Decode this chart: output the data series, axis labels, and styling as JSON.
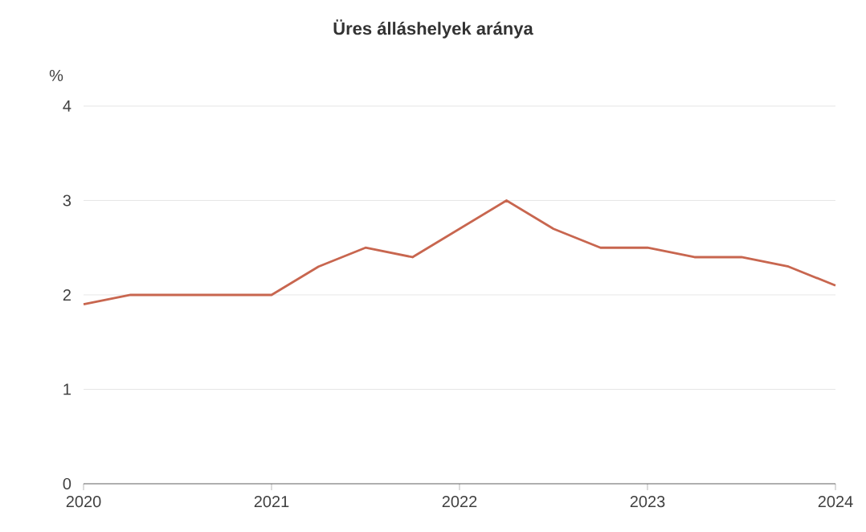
{
  "chart_data": {
    "type": "line",
    "title": "Üres álláshelyek aránya",
    "ylabel": "%",
    "x": [
      2020,
      2020.25,
      2020.5,
      2020.75,
      2021,
      2021.25,
      2021.5,
      2021.75,
      2022,
      2022.25,
      2022.5,
      2022.75,
      2023,
      2023.25,
      2023.5,
      2023.75,
      2024
    ],
    "series": [
      {
        "color": "#c8664f",
        "values": [
          1.9,
          2.0,
          2.0,
          2.0,
          2.0,
          2.3,
          2.5,
          2.4,
          2.7,
          3.0,
          2.7,
          2.5,
          2.5,
          2.4,
          2.4,
          2.3,
          2.1
        ]
      }
    ],
    "xlim": [
      2020,
      2024
    ],
    "xticks": [
      2020,
      2021,
      2022,
      2023,
      2024
    ],
    "ylim": [
      0,
      4
    ],
    "yticks": [
      0,
      1,
      2,
      3,
      4
    ],
    "grid": "y",
    "marker": "none",
    "line_style": "solid"
  }
}
